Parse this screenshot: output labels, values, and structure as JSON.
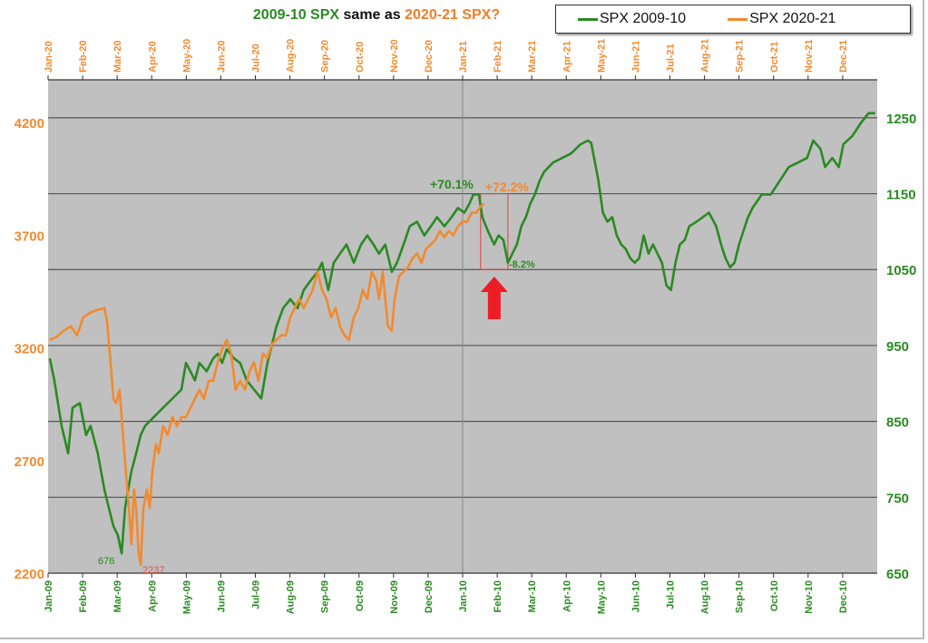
{
  "title": {
    "part1": "2009-10 SPX",
    "part2": " same as ",
    "part3": "2020-21 SPX?"
  },
  "colors": {
    "green": "#2a8a22",
    "orange": "#f28a2e",
    "plot_bg": "#c0c0c0",
    "grid": "#555555",
    "arrow": "#ee1c25"
  },
  "chart_data": {
    "type": "line",
    "title": "2009-10 SPX same as 2020-21 SPX?",
    "legend_position": "top-right",
    "grid": true,
    "x_unit": "months since start (0-24)",
    "x_top_ticks": [
      "Jan-20",
      "Feb-20",
      "Mar-20",
      "Apr-20",
      "May-20",
      "Jun-20",
      "Jul-20",
      "Aug-20",
      "Sep-20",
      "Oct-20",
      "Nov-20",
      "Dec-20",
      "Jan-21",
      "Feb-21",
      "Mar-21",
      "Apr-21",
      "May-21",
      "Jun-21",
      "Jul-21",
      "Aug-21",
      "Sep-21",
      "Oct-21",
      "Nov-21",
      "Dec-21"
    ],
    "x_bottom_ticks": [
      "Jan-09",
      "Feb-09",
      "Mar-09",
      "Apr-09",
      "May-09",
      "Jun-09",
      "Jul-09",
      "Aug-09",
      "Sep-09",
      "Oct-09",
      "Nov-09",
      "Dec-09",
      "Jan-10",
      "Feb-10",
      "Mar-10",
      "Apr-10",
      "May-10",
      "Jun-10",
      "Jul-10",
      "Aug-10",
      "Sep-10",
      "Oct-10",
      "Nov-10",
      "Dec-10"
    ],
    "y_left": {
      "ticks": [
        "2200",
        "2700",
        "3200",
        "3700",
        "4200"
      ],
      "range": [
        2200,
        4390
      ]
    },
    "y_right": {
      "ticks": [
        "650",
        "750",
        "850",
        "950",
        "1050",
        "1150",
        "1250"
      ],
      "range": [
        650,
        1300
      ]
    },
    "series": [
      {
        "name": "SPX 2009-10",
        "axis": "right",
        "points": [
          [
            0.05,
            933
          ],
          [
            0.18,
            904
          ],
          [
            0.39,
            844
          ],
          [
            0.58,
            808
          ],
          [
            0.71,
            868
          ],
          [
            0.92,
            874
          ],
          [
            1.1,
            832
          ],
          [
            1.23,
            844
          ],
          [
            1.44,
            808
          ],
          [
            1.63,
            760
          ],
          [
            1.76,
            736
          ],
          [
            1.89,
            712
          ],
          [
            2.02,
            700
          ],
          [
            2.13,
            676
          ],
          [
            2.23,
            736
          ],
          [
            2.41,
            784
          ],
          [
            2.55,
            808
          ],
          [
            2.68,
            832
          ],
          [
            2.81,
            844
          ],
          [
            3.07,
            856
          ],
          [
            3.33,
            868
          ],
          [
            3.6,
            880
          ],
          [
            3.86,
            892
          ],
          [
            3.99,
            927
          ],
          [
            4.12,
            916
          ],
          [
            4.25,
            904
          ],
          [
            4.38,
            927
          ],
          [
            4.59,
            916
          ],
          [
            4.78,
            933
          ],
          [
            4.91,
            939
          ],
          [
            5.04,
            927
          ],
          [
            5.17,
            945
          ],
          [
            5.38,
            933
          ],
          [
            5.56,
            927
          ],
          [
            5.75,
            904
          ],
          [
            5.96,
            892
          ],
          [
            6.17,
            880
          ],
          [
            6.35,
            927
          ],
          [
            6.48,
            951
          ],
          [
            6.61,
            975
          ],
          [
            6.8,
            999
          ],
          [
            7.01,
            1011
          ],
          [
            7.22,
            999
          ],
          [
            7.4,
            1023
          ],
          [
            7.59,
            1035
          ],
          [
            7.8,
            1047
          ],
          [
            7.93,
            1059
          ],
          [
            8.11,
            1023
          ],
          [
            8.27,
            1059
          ],
          [
            8.45,
            1071
          ],
          [
            8.64,
            1083
          ],
          [
            8.85,
            1059
          ],
          [
            9.06,
            1083
          ],
          [
            9.24,
            1095
          ],
          [
            9.42,
            1083
          ],
          [
            9.58,
            1071
          ],
          [
            9.76,
            1083
          ],
          [
            9.95,
            1047
          ],
          [
            10.1,
            1059
          ],
          [
            10.29,
            1083
          ],
          [
            10.47,
            1107
          ],
          [
            10.68,
            1113
          ],
          [
            10.89,
            1095
          ],
          [
            11.08,
            1107
          ],
          [
            11.26,
            1119
          ],
          [
            11.47,
            1107
          ],
          [
            11.68,
            1119
          ],
          [
            11.86,
            1131
          ],
          [
            12.05,
            1125
          ],
          [
            12.2,
            1137
          ],
          [
            12.31,
            1149
          ],
          [
            12.47,
            1149
          ],
          [
            12.57,
            1119
          ],
          [
            12.73,
            1101
          ],
          [
            12.91,
            1083
          ],
          [
            13.04,
            1095
          ],
          [
            13.18,
            1089
          ],
          [
            13.31,
            1059
          ],
          [
            13.44,
            1071
          ],
          [
            13.57,
            1083
          ],
          [
            13.7,
            1107
          ],
          [
            13.83,
            1119
          ],
          [
            13.96,
            1137
          ],
          [
            14.09,
            1149
          ],
          [
            14.23,
            1167
          ],
          [
            14.36,
            1179
          ],
          [
            14.62,
            1191
          ],
          [
            14.88,
            1197
          ],
          [
            15.14,
            1203
          ],
          [
            15.41,
            1215
          ],
          [
            15.62,
            1220
          ],
          [
            15.72,
            1217
          ],
          [
            15.83,
            1191
          ],
          [
            15.93,
            1167
          ],
          [
            16.06,
            1125
          ],
          [
            16.19,
            1113
          ],
          [
            16.33,
            1119
          ],
          [
            16.46,
            1095
          ],
          [
            16.59,
            1083
          ],
          [
            16.72,
            1077
          ],
          [
            16.85,
            1065
          ],
          [
            16.98,
            1059
          ],
          [
            17.11,
            1065
          ],
          [
            17.24,
            1095
          ],
          [
            17.38,
            1071
          ],
          [
            17.51,
            1083
          ],
          [
            17.64,
            1071
          ],
          [
            17.77,
            1059
          ],
          [
            17.9,
            1029
          ],
          [
            18.03,
            1023
          ],
          [
            18.16,
            1059
          ],
          [
            18.29,
            1083
          ],
          [
            18.43,
            1089
          ],
          [
            18.56,
            1107
          ],
          [
            18.77,
            1113
          ],
          [
            18.95,
            1119
          ],
          [
            19.13,
            1125
          ],
          [
            19.34,
            1107
          ],
          [
            19.48,
            1083
          ],
          [
            19.61,
            1065
          ],
          [
            19.74,
            1053
          ],
          [
            19.87,
            1059
          ],
          [
            20.0,
            1083
          ],
          [
            20.13,
            1101
          ],
          [
            20.26,
            1119
          ],
          [
            20.39,
            1131
          ],
          [
            20.66,
            1149
          ],
          [
            20.92,
            1149
          ],
          [
            21.18,
            1167
          ],
          [
            21.44,
            1185
          ],
          [
            21.71,
            1191
          ],
          [
            21.97,
            1197
          ],
          [
            22.15,
            1220
          ],
          [
            22.36,
            1209
          ],
          [
            22.49,
            1185
          ],
          [
            22.7,
            1197
          ],
          [
            22.89,
            1185
          ],
          [
            23.02,
            1215
          ],
          [
            23.28,
            1226
          ],
          [
            23.54,
            1244
          ],
          [
            23.75,
            1256
          ],
          [
            23.94,
            1256
          ]
        ]
      },
      {
        "name": "SPX 2020-21",
        "axis": "left",
        "points": [
          [
            0.05,
            3236
          ],
          [
            0.24,
            3248
          ],
          [
            0.45,
            3276
          ],
          [
            0.66,
            3296
          ],
          [
            0.84,
            3256
          ],
          [
            1.02,
            3336
          ],
          [
            1.23,
            3357
          ],
          [
            1.44,
            3369
          ],
          [
            1.63,
            3377
          ],
          [
            1.71,
            3316
          ],
          [
            1.81,
            3135
          ],
          [
            1.89,
            2974
          ],
          [
            1.97,
            2954
          ],
          [
            2.07,
            3014
          ],
          [
            2.15,
            2853
          ],
          [
            2.23,
            2692
          ],
          [
            2.34,
            2490
          ],
          [
            2.41,
            2329
          ],
          [
            2.49,
            2571
          ],
          [
            2.55,
            2490
          ],
          [
            2.62,
            2289
          ],
          [
            2.68,
            2237
          ],
          [
            2.76,
            2490
          ],
          [
            2.86,
            2571
          ],
          [
            2.94,
            2490
          ],
          [
            3.02,
            2651
          ],
          [
            3.12,
            2772
          ],
          [
            3.2,
            2732
          ],
          [
            3.33,
            2853
          ],
          [
            3.46,
            2813
          ],
          [
            3.6,
            2893
          ],
          [
            3.73,
            2853
          ],
          [
            3.86,
            2893
          ],
          [
            3.99,
            2893
          ],
          [
            4.12,
            2933
          ],
          [
            4.25,
            2974
          ],
          [
            4.38,
            3014
          ],
          [
            4.51,
            2974
          ],
          [
            4.65,
            3054
          ],
          [
            4.78,
            3054
          ],
          [
            4.91,
            3135
          ],
          [
            5.04,
            3195
          ],
          [
            5.17,
            3236
          ],
          [
            5.3,
            3175
          ],
          [
            5.43,
            3014
          ],
          [
            5.56,
            3054
          ],
          [
            5.7,
            3014
          ],
          [
            5.83,
            3095
          ],
          [
            5.96,
            3135
          ],
          [
            6.09,
            3054
          ],
          [
            6.22,
            3175
          ],
          [
            6.35,
            3155
          ],
          [
            6.48,
            3216
          ],
          [
            6.61,
            3236
          ],
          [
            6.75,
            3256
          ],
          [
            6.88,
            3256
          ],
          [
            7.01,
            3336
          ],
          [
            7.14,
            3377
          ],
          [
            7.27,
            3417
          ],
          [
            7.4,
            3377
          ],
          [
            7.53,
            3417
          ],
          [
            7.66,
            3457
          ],
          [
            7.8,
            3538
          ],
          [
            7.93,
            3457
          ],
          [
            8.06,
            3417
          ],
          [
            8.19,
            3336
          ],
          [
            8.32,
            3377
          ],
          [
            8.45,
            3296
          ],
          [
            8.58,
            3256
          ],
          [
            8.71,
            3236
          ],
          [
            8.85,
            3336
          ],
          [
            8.98,
            3377
          ],
          [
            9.11,
            3457
          ],
          [
            9.24,
            3417
          ],
          [
            9.37,
            3538
          ],
          [
            9.5,
            3498
          ],
          [
            9.58,
            3417
          ],
          [
            9.69,
            3538
          ],
          [
            9.76,
            3417
          ],
          [
            9.84,
            3296
          ],
          [
            9.95,
            3276
          ],
          [
            10.03,
            3417
          ],
          [
            10.16,
            3518
          ],
          [
            10.29,
            3538
          ],
          [
            10.42,
            3558
          ],
          [
            10.55,
            3598
          ],
          [
            10.68,
            3619
          ],
          [
            10.81,
            3578
          ],
          [
            10.94,
            3639
          ],
          [
            11.08,
            3659
          ],
          [
            11.21,
            3679
          ],
          [
            11.34,
            3719
          ],
          [
            11.47,
            3691
          ],
          [
            11.6,
            3719
          ],
          [
            11.73,
            3699
          ],
          [
            11.86,
            3739
          ],
          [
            11.99,
            3760
          ],
          [
            12.13,
            3760
          ],
          [
            12.26,
            3800
          ],
          [
            12.39,
            3800
          ],
          [
            12.52,
            3828
          ],
          [
            12.62,
            3840
          ]
        ]
      }
    ],
    "annotations": {
      "low_2009": "676",
      "low_2020": "2237",
      "gain_2009": "+70.1%",
      "gain_2020": "+72.2%",
      "pullback": "-8.2%"
    }
  }
}
